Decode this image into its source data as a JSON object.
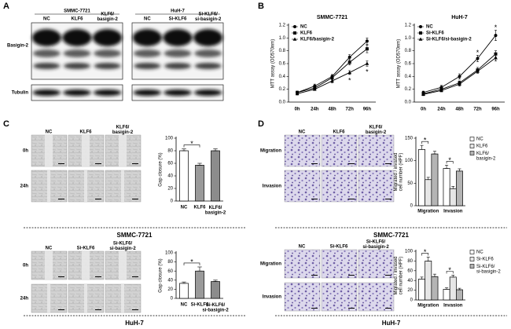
{
  "figure": {
    "panels": [
      "A",
      "B",
      "C",
      "D"
    ],
    "blot": {
      "groups": [
        {
          "name": "SMMC-7721",
          "lanes": [
            "NC",
            "KLF6",
            "KLF6/\nbasigin-2"
          ]
        },
        {
          "name": "HuH-7",
          "lanes": [
            "NC",
            "Si-KLF6",
            "Si-KLF6/\nsi-basigin-2"
          ]
        }
      ],
      "rows": [
        "Basigin-2",
        "Tubulin"
      ]
    },
    "wound": [
      {
        "lanes": [
          "NC",
          "KLF6",
          "KLF6/\nbasigin-2"
        ],
        "rows": [
          "0h",
          "24h"
        ],
        "cell_line": "SMMC-7721"
      },
      {
        "lanes": [
          "NC",
          "Si-KLF6",
          "Si-KLF6/\nsi-basigin-2"
        ],
        "rows": [
          "0h",
          "24h"
        ],
        "cell_line": "HuH-7"
      }
    ],
    "transwell": [
      {
        "lanes": [
          "NC",
          "KLF6",
          "KLF6/\nbasigin-2"
        ],
        "rows": [
          "Migration",
          "Invasion"
        ],
        "cell_line": "SMMC-7721"
      },
      {
        "lanes": [
          "NC",
          "Si-KLF6",
          "Si-KLF6/\nsi-basigin-2"
        ],
        "rows": [
          "Migration",
          "Invasion"
        ],
        "cell_line": "HuH-7"
      }
    ]
  },
  "chart_data": [
    {
      "type": "line",
      "title": "SMMC-7721",
      "ylabel": "MTT assay (OD570nm)",
      "categories": [
        "0h",
        "24h",
        "48h",
        "72h",
        "96h"
      ],
      "ylim": [
        0,
        1.2
      ],
      "yticks": [
        {
          "value": 0,
          "label": "0.0"
        },
        0.2,
        0.4,
        0.6,
        0.8,
        {
          "value": 1,
          "label": "1.0"
        },
        1.2
      ],
      "series": [
        {
          "name": "NC",
          "color": "#000000",
          "marker": "circle",
          "values": [
            0.15,
            0.25,
            0.4,
            0.7,
            0.95
          ],
          "errors": [
            0.02,
            0.03,
            0.03,
            0.04,
            0.05
          ]
        },
        {
          "name": "KLF6",
          "color": "#000000",
          "marker": "square",
          "values": [
            0.15,
            0.22,
            0.38,
            0.62,
            0.83
          ],
          "errors": [
            0.02,
            0.02,
            0.03,
            0.04,
            0.06
          ]
        },
        {
          "name": "KLF6/basigin-2",
          "color": "#000000",
          "marker": "triangle",
          "values": [
            0.13,
            0.2,
            0.33,
            0.46,
            0.6
          ],
          "errors": [
            0.02,
            0.02,
            0.03,
            0.03,
            0.04
          ]
        }
      ],
      "annotations": [
        {
          "text": "*",
          "category": "72h",
          "series": "KLF6/basigin-2",
          "position": "below"
        },
        {
          "text": "*",
          "category": "96h",
          "series": "KLF6/basigin-2",
          "position": "below"
        }
      ]
    },
    {
      "type": "line",
      "title": "HuH-7",
      "ylabel": "MTT assay (OD570nm)",
      "categories": [
        "0h",
        "24h",
        "48h",
        "72h",
        "96h"
      ],
      "ylim": [
        0,
        1.2
      ],
      "yticks": [
        {
          "value": 0,
          "label": "0.0"
        },
        0.2,
        0.4,
        0.6,
        0.8,
        {
          "value": 1,
          "label": "1.0"
        },
        1.2
      ],
      "series": [
        {
          "name": "NC",
          "color": "#000000",
          "marker": "circle",
          "values": [
            0.15,
            0.23,
            0.4,
            0.68,
            1.04
          ],
          "errors": [
            0.02,
            0.03,
            0.04,
            0.05,
            0.08
          ]
        },
        {
          "name": "Si-KLF6",
          "color": "#000000",
          "marker": "square",
          "values": [
            0.13,
            0.2,
            0.3,
            0.5,
            0.75
          ],
          "errors": [
            0.02,
            0.02,
            0.03,
            0.04,
            0.05
          ]
        },
        {
          "name": "Si-KLF6/si-basigin-2",
          "color": "#000000",
          "marker": "triangle",
          "values": [
            0.12,
            0.18,
            0.28,
            0.48,
            0.69
          ],
          "errors": [
            0.02,
            0.02,
            0.03,
            0.03,
            0.05
          ]
        }
      ],
      "annotations": [
        {
          "text": "*",
          "category": "72h",
          "series": "NC",
          "position": "above"
        },
        {
          "text": "*",
          "category": "96h",
          "series": "NC",
          "position": "above"
        }
      ]
    },
    {
      "type": "bar",
      "ylabel": "Gap closure (%)",
      "categories": [
        "NC",
        "KLF6",
        "KLF6/\nbasigin-2"
      ],
      "values": [
        80,
        57,
        80
      ],
      "errors": [
        3,
        3,
        3
      ],
      "colors": [
        "#ffffff",
        "#9a9a9a",
        "#8c8c8c"
      ],
      "ylim": [
        0,
        100
      ],
      "yticks": [
        0,
        20,
        40,
        60,
        80,
        100
      ],
      "annotations": [
        {
          "text": "*",
          "between": [
            "NC",
            "KLF6"
          ]
        }
      ]
    },
    {
      "type": "bar",
      "ylabel": "Gap closure (%)",
      "categories": [
        "NC",
        "Si-KLF6",
        "Si-KLF6/\nsi-basigin-2"
      ],
      "values": [
        33,
        60,
        37
      ],
      "errors": [
        3,
        9,
        3
      ],
      "colors": [
        "#ffffff",
        "#9a9a9a",
        "#8c8c8c"
      ],
      "ylim": [
        0,
        100
      ],
      "yticks": [
        0,
        20,
        40,
        60,
        80,
        100
      ],
      "annotations": [
        {
          "text": "*",
          "between": [
            "NC",
            "Si-KLF6"
          ]
        }
      ]
    },
    {
      "type": "bar",
      "ylabel": "Migrated / invased\ncell number (HPF)",
      "categories": [
        "Migration",
        "Invasion"
      ],
      "ylim": [
        0,
        150
      ],
      "yticks": [
        0,
        50,
        100,
        150
      ],
      "series": [
        {
          "name": "NC",
          "color": "#ffffff",
          "values": [
            125,
            83
          ],
          "errors": [
            9,
            7
          ]
        },
        {
          "name": "KLF6",
          "color": "#e6e6e6",
          "values": [
            58,
            38
          ],
          "errors": [
            5,
            5
          ]
        },
        {
          "name": "KLF6/\nbasigin-2",
          "color": "#b4b4b4",
          "values": [
            115,
            77
          ],
          "errors": [
            6,
            5
          ]
        }
      ],
      "annotations": [
        {
          "text": "*",
          "group": "Migration",
          "between": [
            "NC",
            "KLF6"
          ]
        },
        {
          "text": "*",
          "group": "Invasion",
          "between": [
            "NC",
            "KLF6"
          ]
        }
      ]
    },
    {
      "type": "bar",
      "ylabel": "Migrated / invased\ncell number (HPF)",
      "categories": [
        "Migration",
        "Invasion"
      ],
      "ylim": [
        0,
        100
      ],
      "yticks": [
        0,
        20,
        40,
        60,
        80,
        100
      ],
      "series": [
        {
          "name": "NC",
          "color": "#ffffff",
          "values": [
            43,
            22
          ],
          "errors": [
            4,
            3
          ]
        },
        {
          "name": "Si-KLF6",
          "color": "#e6e6e6",
          "values": [
            80,
            47
          ],
          "errors": [
            8,
            4
          ]
        },
        {
          "name": "Si-KLF6/\nsi-basigin-2",
          "color": "#b4b4b4",
          "values": [
            48,
            21
          ],
          "errors": [
            5,
            3
          ]
        }
      ],
      "annotations": [
        {
          "text": "*",
          "group": "Migration",
          "between": [
            "NC",
            "Si-KLF6"
          ]
        },
        {
          "text": "*",
          "group": "Invasion",
          "between": [
            "NC",
            "Si-KLF6"
          ]
        }
      ]
    }
  ]
}
